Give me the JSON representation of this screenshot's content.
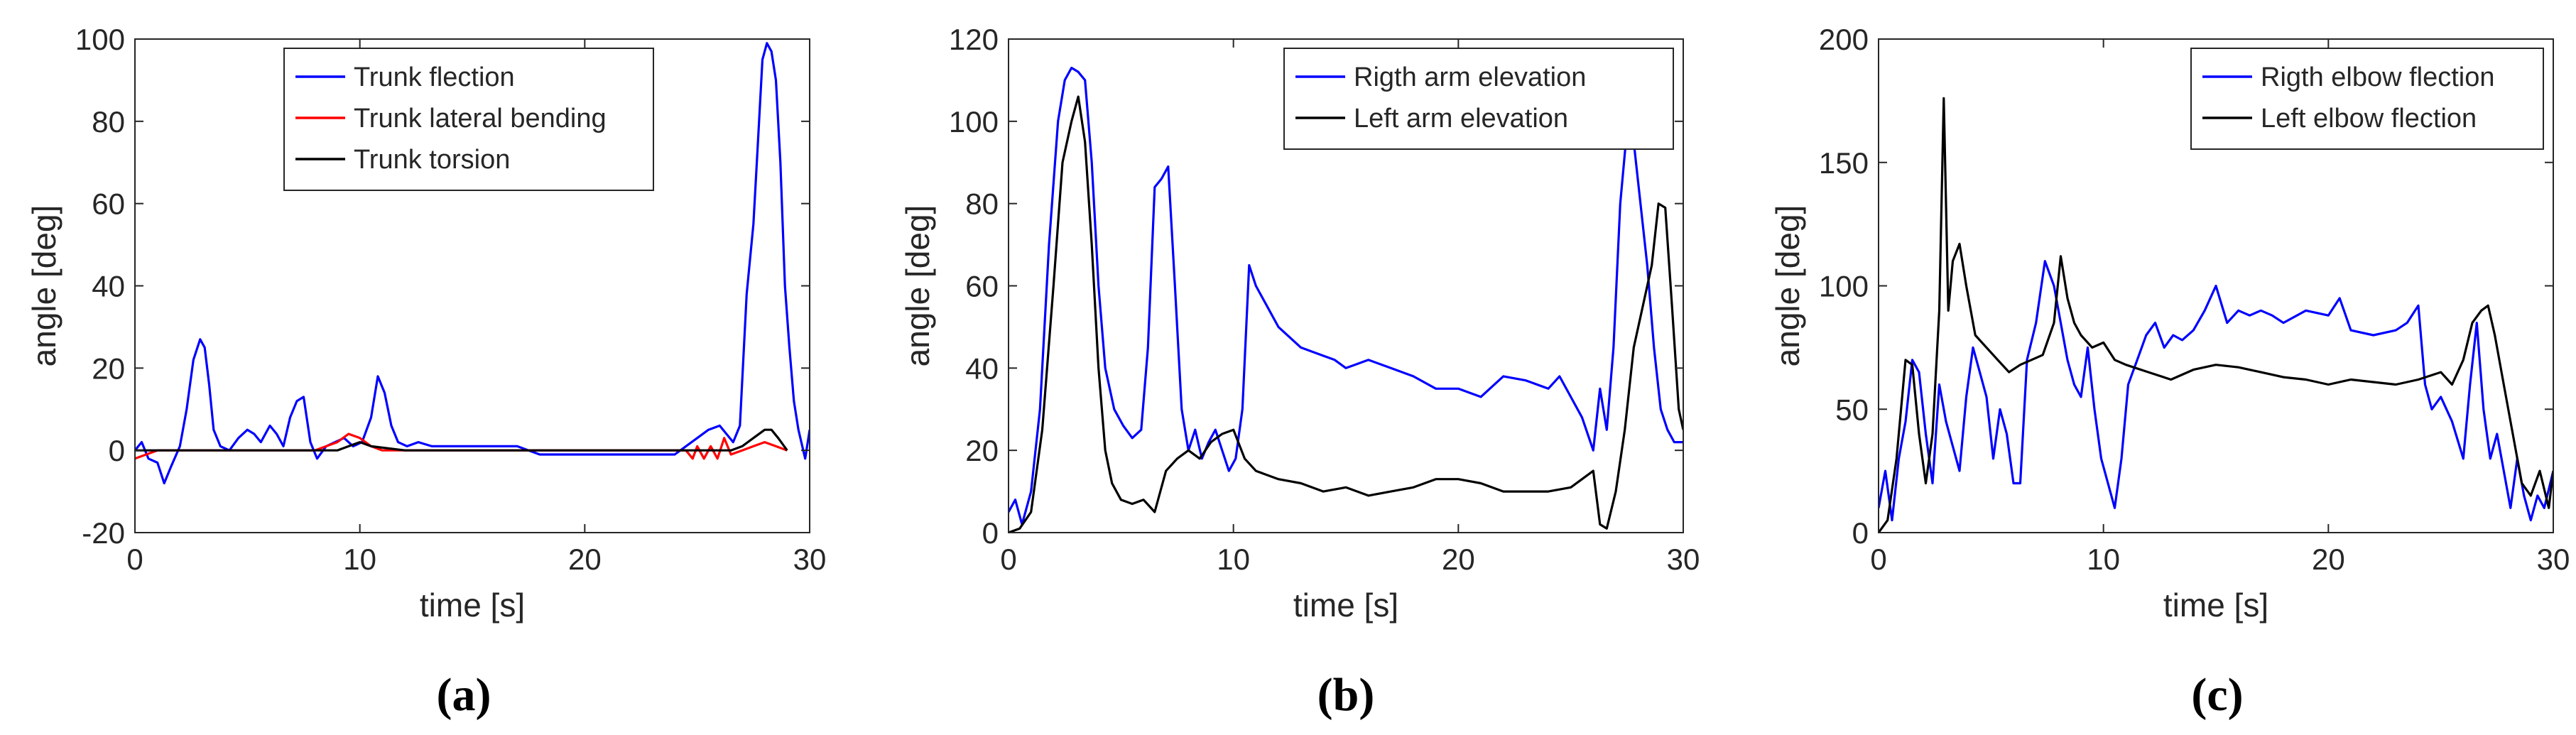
{
  "figure": {
    "panel_labels": [
      "(a)",
      "(b)",
      "(c)"
    ]
  },
  "chart_data": [
    {
      "type": "line",
      "panel": "(a)",
      "title": "",
      "xlabel": "time [s]",
      "ylabel": "angle [deg]",
      "xlim": [
        0,
        30
      ],
      "ylim": [
        -20,
        100
      ],
      "xticks": [
        0,
        10,
        20,
        30
      ],
      "yticks": [
        -20,
        0,
        20,
        40,
        60,
        80,
        100
      ],
      "grid": false,
      "legend": "top-center",
      "series": [
        {
          "name": "Trunk flection",
          "color": "#0000ff",
          "x": [
            0,
            0.3,
            0.6,
            1.0,
            1.3,
            1.6,
            2.0,
            2.3,
            2.6,
            2.9,
            3.1,
            3.3,
            3.5,
            3.8,
            4.2,
            4.6,
            5.0,
            5.3,
            5.6,
            6.0,
            6.3,
            6.6,
            6.9,
            7.2,
            7.5,
            7.8,
            8.1,
            8.5,
            8.9,
            9.3,
            9.7,
            10.1,
            10.5,
            10.8,
            11.1,
            11.4,
            11.7,
            12.1,
            12.6,
            13.2,
            14.0,
            15.0,
            16.0,
            17.0,
            17.5,
            18.0,
            19.0,
            20.0,
            21.0,
            22.0,
            23.0,
            24.0,
            24.5,
            25.0,
            25.5,
            26.0,
            26.3,
            26.6,
            26.9,
            27.2,
            27.5,
            27.7,
            27.9,
            28.1,
            28.3,
            28.5,
            28.7,
            28.9,
            29.1,
            29.3,
            29.5,
            29.8,
            30.0
          ],
          "y": [
            0,
            2,
            -2,
            -3,
            -8,
            -4,
            1,
            10,
            22,
            27,
            25,
            16,
            5,
            1,
            0,
            3,
            5,
            4,
            2,
            6,
            4,
            1,
            8,
            12,
            13,
            2,
            -2,
            1,
            2,
            3,
            1,
            2,
            8,
            18,
            14,
            6,
            2,
            1,
            2,
            1,
            1,
            1,
            1,
            1,
            0,
            -1,
            -1,
            -1,
            -1,
            -1,
            -1,
            -1,
            1,
            3,
            5,
            6,
            4,
            2,
            6,
            38,
            55,
            75,
            95,
            99,
            97,
            90,
            70,
            40,
            25,
            12,
            5,
            -2,
            5
          ]
        },
        {
          "name": "Trunk lateral bending",
          "color": "#ff0000",
          "x": [
            0,
            0.5,
            1.0,
            2.0,
            4.0,
            6.0,
            8.0,
            9.0,
            9.5,
            10.0,
            10.5,
            11.0,
            14.0,
            18.0,
            22.0,
            24.5,
            24.8,
            25.0,
            25.3,
            25.6,
            25.9,
            26.2,
            26.5,
            27.0,
            27.5,
            28.0,
            28.5,
            29.0
          ],
          "y": [
            -2,
            -1,
            0,
            0,
            0,
            0,
            0,
            2,
            4,
            3,
            1,
            0,
            0,
            0,
            0,
            0,
            -2,
            1,
            -2,
            1,
            -2,
            3,
            -1,
            0,
            1,
            2,
            1,
            0
          ]
        },
        {
          "name": "Trunk torsion",
          "color": "#000000",
          "x": [
            0,
            1.0,
            3.0,
            6.0,
            9.0,
            9.5,
            10.0,
            10.5,
            12.0,
            16.0,
            20.0,
            24.0,
            25.0,
            26.0,
            26.5,
            27.0,
            27.5,
            28.0,
            28.3,
            28.6,
            29.0
          ],
          "y": [
            0,
            0,
            0,
            0,
            0,
            1,
            2,
            1,
            0,
            0,
            0,
            0,
            0,
            0,
            0,
            1,
            3,
            5,
            5,
            3,
            0
          ]
        }
      ]
    },
    {
      "type": "line",
      "panel": "(b)",
      "title": "",
      "xlabel": "time [s]",
      "ylabel": "angle [deg]",
      "xlim": [
        0,
        30
      ],
      "ylim": [
        0,
        120
      ],
      "xticks": [
        0,
        10,
        20,
        30
      ],
      "yticks": [
        0,
        20,
        40,
        60,
        80,
        100,
        120
      ],
      "grid": false,
      "legend": "top-right",
      "series": [
        {
          "name": "Rigth arm elevation",
          "color": "#0000ff",
          "x": [
            0,
            0.3,
            0.6,
            1.0,
            1.4,
            1.8,
            2.2,
            2.5,
            2.8,
            3.1,
            3.4,
            3.7,
            4.0,
            4.3,
            4.7,
            5.1,
            5.5,
            5.9,
            6.2,
            6.5,
            6.8,
            7.1,
            7.4,
            7.7,
            8.0,
            8.3,
            8.6,
            8.9,
            9.2,
            9.5,
            9.8,
            10.1,
            10.4,
            10.7,
            11.0,
            11.5,
            12.0,
            13.0,
            14.0,
            14.5,
            15.0,
            16.0,
            17.0,
            18.0,
            19.0,
            20.0,
            21.0,
            22.0,
            23.0,
            24.0,
            24.5,
            25.0,
            25.5,
            26.0,
            26.3,
            26.6,
            26.9,
            27.2,
            27.5,
            27.8,
            28.1,
            28.4,
            28.7,
            29.0,
            29.3,
            29.6,
            30.0
          ],
          "y": [
            5,
            8,
            2,
            10,
            30,
            70,
            100,
            110,
            113,
            112,
            110,
            90,
            60,
            40,
            30,
            26,
            23,
            25,
            45,
            84,
            86,
            89,
            60,
            30,
            20,
            25,
            18,
            22,
            25,
            20,
            15,
            18,
            30,
            65,
            60,
            55,
            50,
            45,
            43,
            42,
            40,
            42,
            40,
            38,
            35,
            35,
            33,
            38,
            37,
            35,
            38,
            33,
            28,
            20,
            35,
            25,
            45,
            80,
            98,
            95,
            80,
            65,
            45,
            30,
            25,
            22,
            22
          ]
        },
        {
          "name": "Left arm elevation",
          "color": "#000000",
          "x": [
            0,
            0.5,
            1.0,
            1.5,
            2.0,
            2.4,
            2.8,
            3.1,
            3.4,
            3.7,
            4.0,
            4.3,
            4.6,
            5.0,
            5.5,
            6.0,
            6.5,
            7.0,
            7.5,
            8.0,
            8.5,
            9.0,
            9.5,
            10.0,
            10.5,
            11.0,
            12.0,
            13.0,
            14.0,
            15.0,
            16.0,
            17.0,
            18.0,
            19.0,
            20.0,
            21.0,
            22.0,
            23.0,
            24.0,
            25.0,
            25.5,
            26.0,
            26.3,
            26.6,
            27.0,
            27.4,
            27.8,
            28.2,
            28.6,
            28.9,
            29.2,
            29.5,
            29.8,
            30.0
          ],
          "y": [
            0,
            1,
            5,
            25,
            60,
            90,
            100,
            106,
            95,
            70,
            40,
            20,
            12,
            8,
            7,
            8,
            5,
            15,
            18,
            20,
            18,
            22,
            24,
            25,
            18,
            15,
            13,
            12,
            10,
            11,
            9,
            10,
            11,
            13,
            13,
            12,
            10,
            10,
            10,
            11,
            13,
            15,
            2,
            1,
            10,
            25,
            45,
            55,
            65,
            80,
            79,
            55,
            30,
            25
          ]
        }
      ]
    },
    {
      "type": "line",
      "panel": "(c)",
      "title": "",
      "xlabel": "time [s]",
      "ylabel": "angle [deg]",
      "xlim": [
        0,
        30
      ],
      "ylim": [
        0,
        200
      ],
      "xticks": [
        0,
        10,
        20,
        30
      ],
      "yticks": [
        0,
        50,
        100,
        150,
        200
      ],
      "grid": false,
      "legend": "top-right",
      "series": [
        {
          "name": "Rigth elbow flection",
          "color": "#0000ff",
          "x": [
            0,
            0.3,
            0.6,
            0.9,
            1.2,
            1.5,
            1.8,
            2.1,
            2.4,
            2.7,
            3.0,
            3.3,
            3.6,
            3.9,
            4.2,
            4.5,
            4.8,
            5.1,
            5.4,
            5.7,
            6.0,
            6.3,
            6.6,
            7.0,
            7.4,
            7.8,
            8.1,
            8.4,
            8.7,
            9.0,
            9.3,
            9.6,
            9.9,
            10.2,
            10.5,
            10.8,
            11.1,
            11.5,
            11.9,
            12.3,
            12.7,
            13.1,
            13.5,
            14.0,
            14.5,
            15.0,
            15.5,
            16.0,
            16.5,
            17.0,
            17.5,
            18.0,
            19.0,
            20.0,
            20.5,
            21.0,
            22.0,
            23.0,
            23.5,
            24.0,
            24.3,
            24.6,
            25.0,
            25.5,
            26.0,
            26.3,
            26.6,
            26.9,
            27.2,
            27.5,
            27.8,
            28.1,
            28.4,
            28.7,
            29.0,
            29.3,
            29.6,
            30.0
          ],
          "y": [
            10,
            25,
            5,
            30,
            45,
            70,
            65,
            40,
            20,
            60,
            45,
            35,
            25,
            55,
            75,
            65,
            55,
            30,
            50,
            40,
            20,
            20,
            70,
            85,
            110,
            100,
            85,
            70,
            60,
            55,
            75,
            50,
            30,
            20,
            10,
            30,
            60,
            70,
            80,
            85,
            75,
            80,
            78,
            82,
            90,
            100,
            85,
            90,
            88,
            90,
            88,
            85,
            90,
            88,
            95,
            82,
            80,
            82,
            85,
            92,
            60,
            50,
            55,
            45,
            30,
            60,
            85,
            50,
            30,
            40,
            25,
            10,
            30,
            15,
            5,
            15,
            10,
            25
          ]
        },
        {
          "name": "Left elbow flection",
          "color": "#000000",
          "x": [
            0,
            0.4,
            0.8,
            1.2,
            1.5,
            1.8,
            2.1,
            2.4,
            2.7,
            2.9,
            3.1,
            3.3,
            3.6,
            3.9,
            4.3,
            4.8,
            5.3,
            5.8,
            6.3,
            6.8,
            7.3,
            7.8,
            8.1,
            8.4,
            8.7,
            9.0,
            9.5,
            10.0,
            10.5,
            11.0,
            12.0,
            13.0,
            14.0,
            15.0,
            16.0,
            17.0,
            18.0,
            19.0,
            20.0,
            21.0,
            22.0,
            23.0,
            24.0,
            25.0,
            25.5,
            26.0,
            26.4,
            26.8,
            27.1,
            27.4,
            27.8,
            28.2,
            28.6,
            29.0,
            29.4,
            29.8,
            30.0
          ],
          "y": [
            0,
            5,
            30,
            70,
            68,
            40,
            20,
            40,
            90,
            176,
            90,
            110,
            117,
            100,
            80,
            75,
            70,
            65,
            68,
            70,
            72,
            85,
            112,
            95,
            85,
            80,
            75,
            77,
            70,
            68,
            65,
            62,
            66,
            68,
            67,
            65,
            63,
            62,
            60,
            62,
            61,
            60,
            62,
            65,
            60,
            70,
            85,
            90,
            92,
            80,
            60,
            40,
            20,
            15,
            25,
            10,
            25
          ]
        }
      ]
    }
  ]
}
